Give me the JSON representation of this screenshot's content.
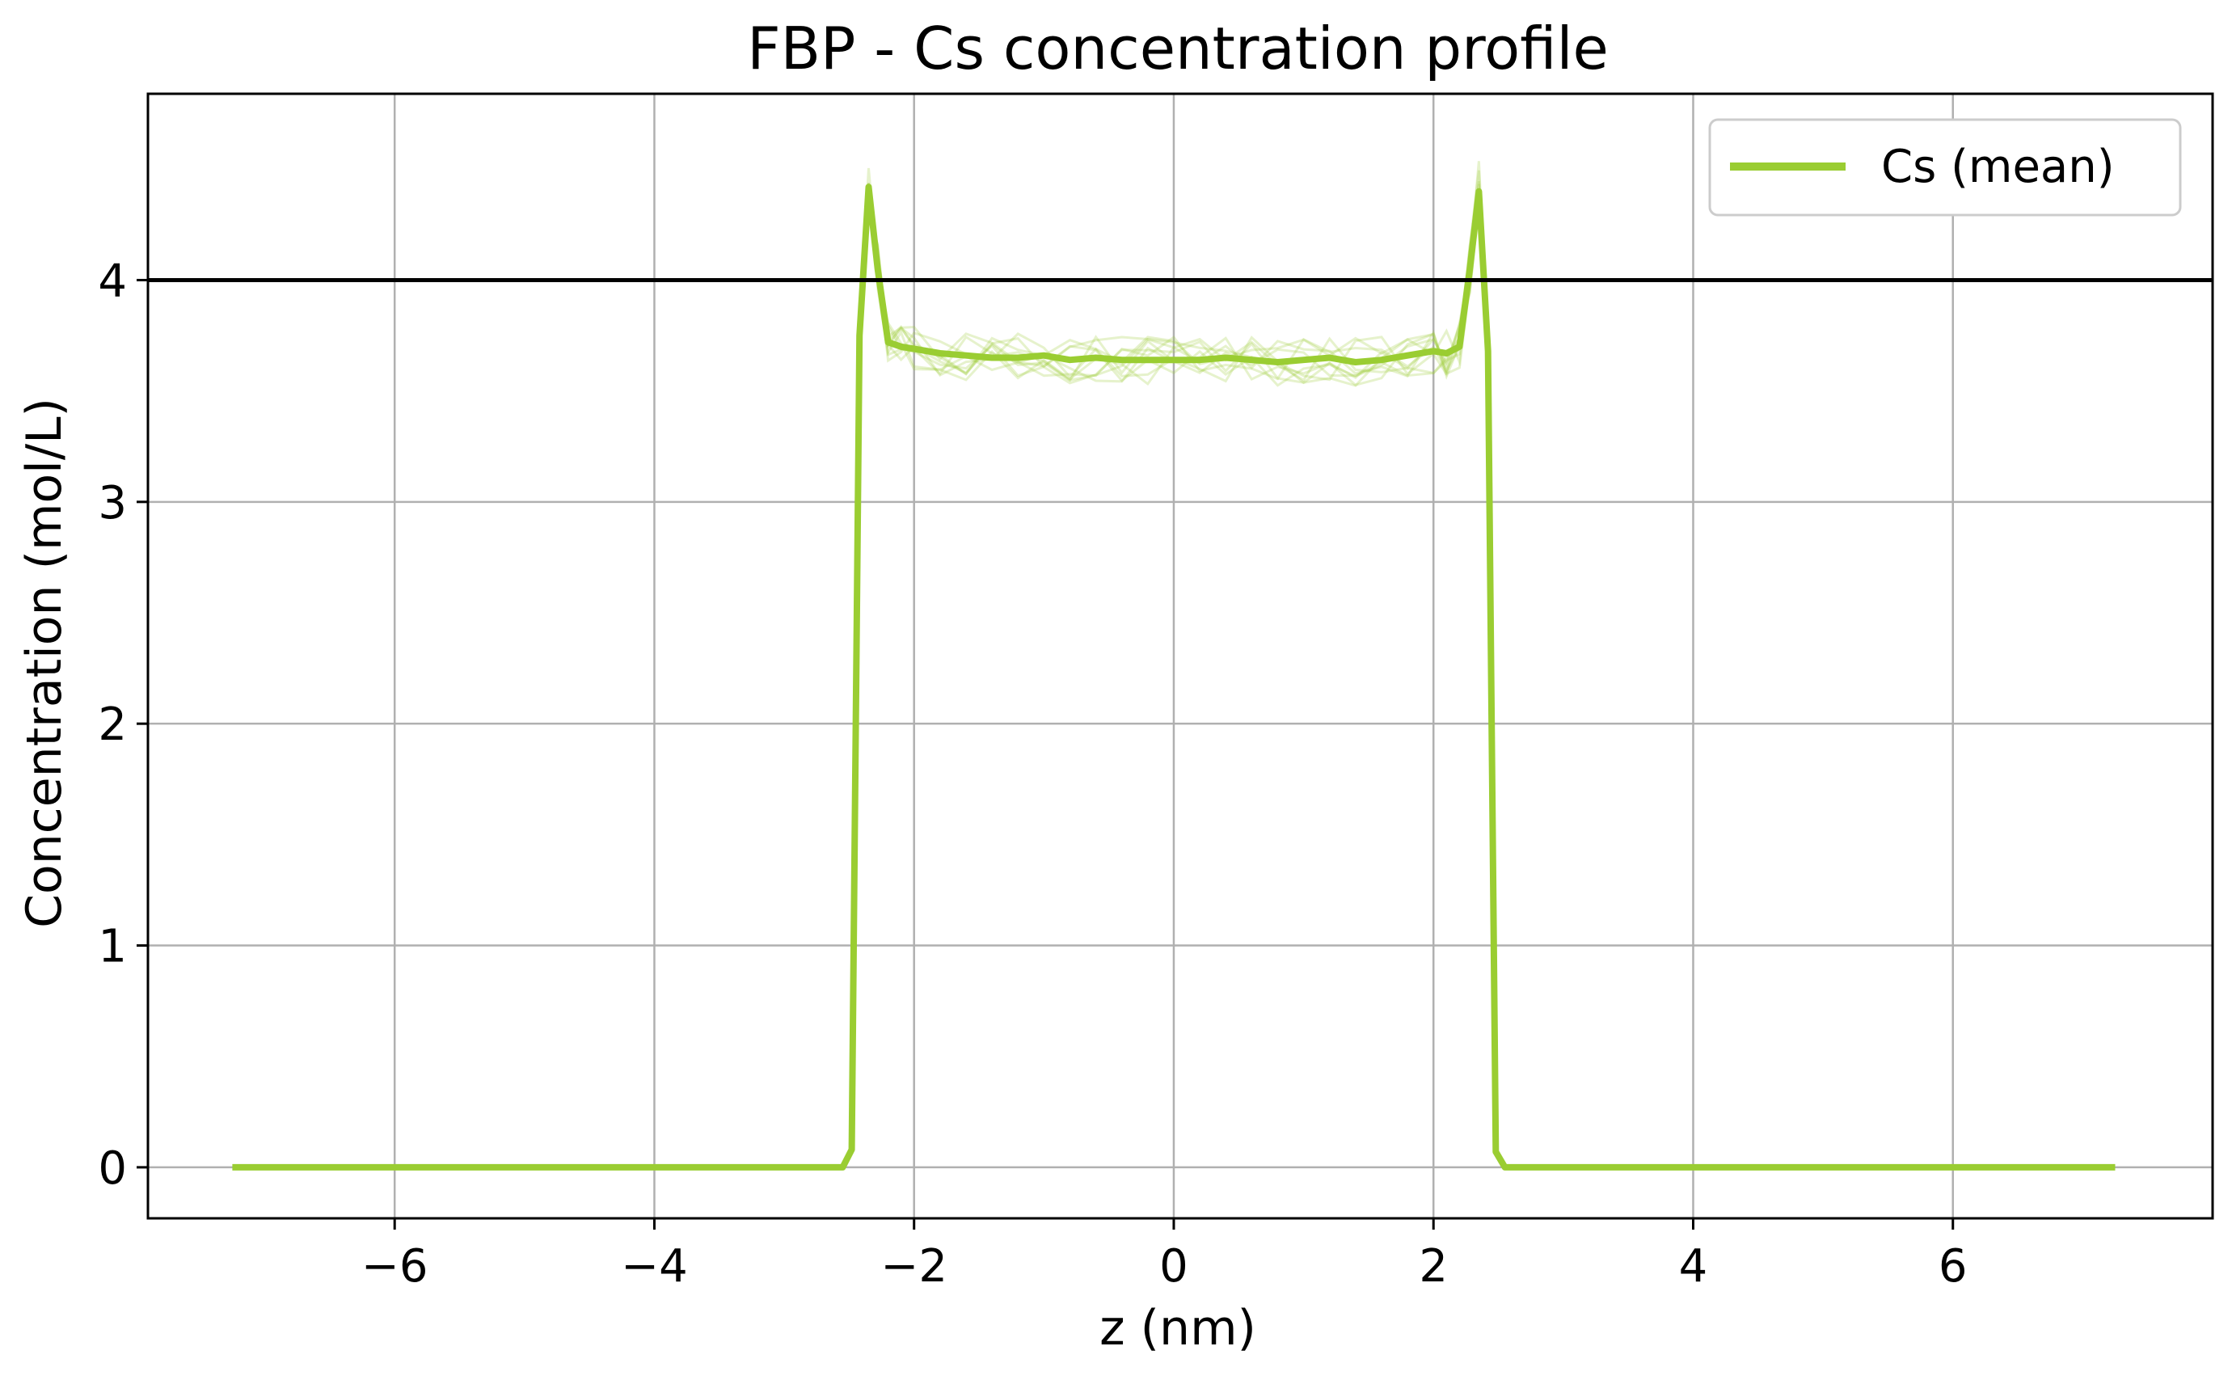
{
  "chart_data": {
    "type": "line",
    "title": "FBP - Cs concentration profile",
    "xlabel": "z (nm)",
    "ylabel": "Concentration (mol/L)",
    "xlim": [
      -7.9,
      8.0
    ],
    "ylim": [
      -0.23,
      4.84
    ],
    "xticks": [
      -6,
      -4,
      -2,
      0,
      2,
      4,
      6
    ],
    "xtick_labels": [
      "−6",
      "−4",
      "−2",
      "0",
      "2",
      "4",
      "6"
    ],
    "yticks": [
      0,
      1,
      2,
      3,
      4
    ],
    "ytick_labels": [
      "0",
      "1",
      "2",
      "3",
      "4"
    ],
    "grid": true,
    "legend": {
      "placement": "top-right",
      "entries": [
        "Cs (mean)"
      ]
    },
    "reference_line": {
      "y": 4.0,
      "color": "#000000"
    },
    "series": [
      {
        "name": "Cs (mean)",
        "color": "#9acd32",
        "x": [
          -7.25,
          -2.55,
          -2.48,
          -2.42,
          -2.35,
          -2.28,
          -2.2,
          -2.1,
          -2.0,
          -1.8,
          -1.6,
          -1.4,
          -1.2,
          -1.0,
          -0.8,
          -0.6,
          -0.4,
          -0.2,
          0.0,
          0.2,
          0.4,
          0.6,
          0.8,
          1.0,
          1.2,
          1.4,
          1.6,
          1.8,
          2.0,
          2.1,
          2.2,
          2.28,
          2.35,
          2.42,
          2.48,
          2.55,
          7.25
        ],
        "y": [
          0,
          0,
          0.08,
          3.75,
          4.42,
          4.05,
          3.72,
          3.7,
          3.69,
          3.67,
          3.66,
          3.65,
          3.65,
          3.66,
          3.64,
          3.65,
          3.64,
          3.64,
          3.64,
          3.64,
          3.65,
          3.64,
          3.63,
          3.64,
          3.65,
          3.63,
          3.64,
          3.66,
          3.68,
          3.67,
          3.7,
          4.05,
          4.4,
          3.68,
          0.07,
          0,
          0
        ]
      }
    ]
  }
}
